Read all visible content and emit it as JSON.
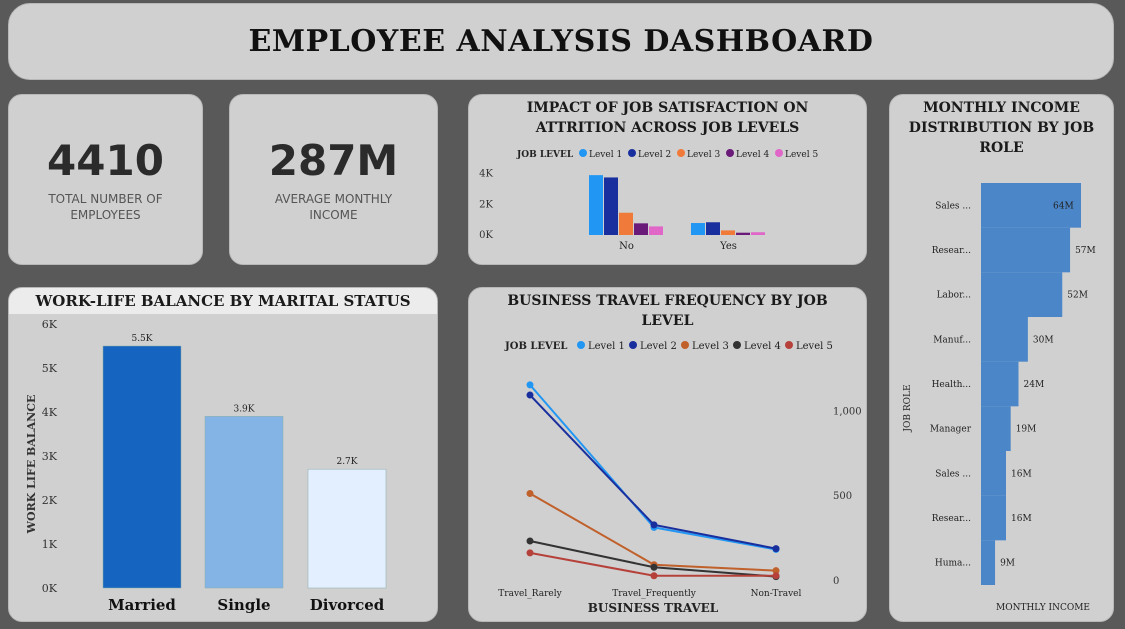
{
  "dashboard": {
    "title": "EMPLOYEE ANALYSIS DASHBOARD"
  },
  "kpis": [
    {
      "value": "4410",
      "label_line1": "TOTAL NUMBER OF",
      "label_line2": "EMPLOYEES"
    },
    {
      "value": "287M",
      "label_line1": "AVERAGE MONTHLY",
      "label_line2": "INCOME"
    }
  ],
  "job_satisfaction": {
    "title_line1": "IMPACT OF JOB SATISFACTION ON",
    "title_line2": "ATTRITION ACROSS JOB LEVELS"
  },
  "business_travel": {
    "title_line1": "BUSINESS TRAVEL FREQUENCY BY JOB",
    "title_line2": "LEVEL"
  },
  "work_life": {
    "title": "WORK-LIFE BALANCE BY MARITAL STATUS"
  },
  "monthly_income": {
    "title_line1": "MONTHLY INCOME",
    "title_line2": "DISTRIBUTION BY JOB",
    "title_line3": "ROLE"
  },
  "colors": {
    "level1": "#2196f3",
    "level2": "#1a2f9e",
    "level3": "#f07a3a",
    "level4": "#6a1b7a",
    "level5": "#e066c8",
    "travel_level3": "#c0602a",
    "travel_level4": "#333333",
    "travel_level5": "#b5413a",
    "married": "#1565c0",
    "single": "#84b4e6",
    "divorced": "#e3efff",
    "income_bar": "#4a86c8"
  },
  "chart_data": [
    {
      "id": "attrition",
      "type": "bar",
      "legend_title": "JOB LEVEL",
      "legend_position": "top",
      "categories": [
        "No",
        "Yes"
      ],
      "series": [
        {
          "name": "Level 1",
          "values": [
            3900,
            780
          ]
        },
        {
          "name": "Level 2",
          "values": [
            3750,
            830
          ]
        },
        {
          "name": "Level 3",
          "values": [
            1450,
            300
          ]
        },
        {
          "name": "Level 4",
          "values": [
            760,
            150
          ]
        },
        {
          "name": "Level 5",
          "values": [
            560,
            180
          ]
        }
      ],
      "ylim": [
        0,
        4300
      ],
      "yticks": [
        0,
        2000,
        4000
      ],
      "ytick_labels": [
        "0K",
        "2K",
        "4K"
      ],
      "xlabel": "",
      "ylabel": "",
      "grid": false
    },
    {
      "id": "travel",
      "type": "line",
      "legend_title": "JOB LEVEL",
      "legend_position": "top",
      "categories": [
        "Travel_Rarely",
        "Travel_Frequently",
        "Non-Travel"
      ],
      "series": [
        {
          "name": "Level 1",
          "values": [
            1150,
            310,
            180
          ]
        },
        {
          "name": "Level 2",
          "values": [
            1090,
            325,
            185
          ]
        },
        {
          "name": "Level 3",
          "values": [
            510,
            90,
            55
          ]
        },
        {
          "name": "Level 4",
          "values": [
            230,
            75,
            20
          ]
        },
        {
          "name": "Level 5",
          "values": [
            160,
            25,
            25
          ]
        }
      ],
      "ylim": [
        0,
        1220
      ],
      "yticks": [
        0,
        500,
        1000
      ],
      "ytick_labels": [
        "0",
        "500",
        "1,000"
      ],
      "y_axis_side": "right",
      "xlabel": "BUSINESS TRAVEL",
      "ylabel": "",
      "grid": false
    },
    {
      "id": "worklife",
      "type": "bar",
      "categories": [
        "Married",
        "Single",
        "Divorced"
      ],
      "values": [
        5500,
        3900,
        2700
      ],
      "data_labels": [
        "5.5K",
        "3.9K",
        "2.7K"
      ],
      "ylim": [
        0,
        6000
      ],
      "yticks": [
        0,
        1000,
        2000,
        3000,
        4000,
        5000,
        6000
      ],
      "ytick_labels": [
        "0K",
        "1K",
        "2K",
        "3K",
        "4K",
        "5K",
        "6K"
      ],
      "xlabel": "",
      "ylabel": "WORK LIFE BALANCE",
      "grid": false
    },
    {
      "id": "income",
      "type": "bar",
      "orientation": "horizontal",
      "categories": [
        "Sales ...",
        "Resear...",
        "Labor...",
        "Manuf...",
        "Health...",
        "Manager",
        "Sales ...",
        "Resear...",
        "Huma..."
      ],
      "values": [
        64,
        57,
        52,
        30,
        24,
        19,
        16,
        16,
        9
      ],
      "data_labels": [
        "64M",
        "57M",
        "52M",
        "30M",
        "24M",
        "19M",
        "16M",
        "16M",
        "9M"
      ],
      "xlim": [
        0,
        64
      ],
      "xlabel": "MONTHLY INCOME",
      "ylabel": "JOB ROLE",
      "grid": false
    }
  ]
}
